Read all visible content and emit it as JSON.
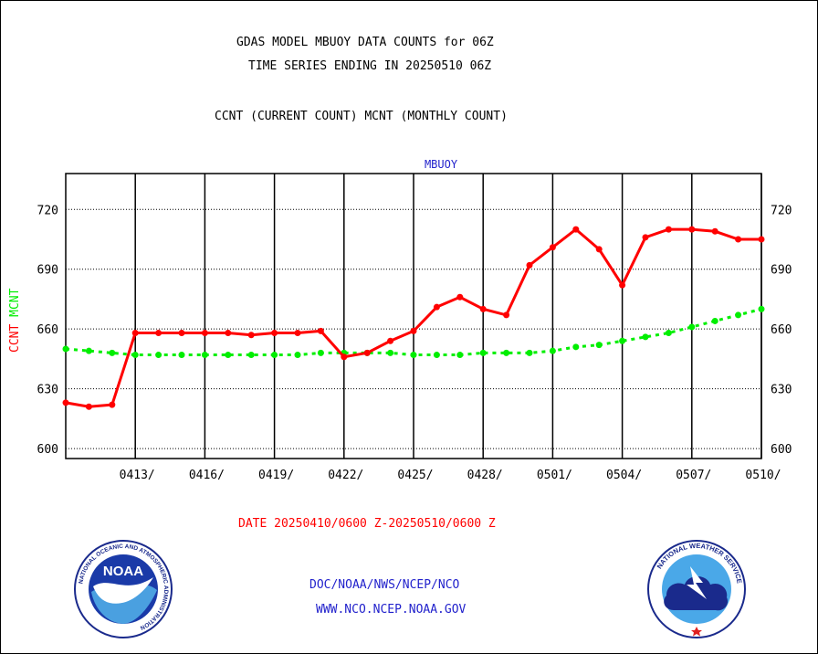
{
  "header": {
    "title_line1": "GDAS MODEL MBUOY DATA COUNTS for 06Z",
    "title_line2": "TIME SERIES ENDING IN 20250510 06Z",
    "subtitle": "CCNT (CURRENT COUNT) MCNT (MONTHLY COUNT)"
  },
  "footer": {
    "date_range": "DATE 20250410/0600 Z-20250510/0600 Z",
    "org_line": "DOC/NOAA/NWS/NCEP/NCO",
    "url_line": "WWW.NCO.NCEP.NOAA.GOV"
  },
  "logos": {
    "noaa": {
      "center_text": "NOAA",
      "ring_text": "NATIONAL OCEANIC AND ATMOSPHERIC ADMINISTRATION",
      "bottom_text": "U.S. DEPARTMENT OF COMMERCE"
    },
    "nws": {
      "ring_text": "NATIONAL WEATHER SERVICE"
    }
  },
  "chart_data": {
    "type": "line",
    "title": "MBUOY",
    "ylabel_series": [
      "CCNT",
      "MCNT"
    ],
    "xlabel": "DATE 20250410/0600 Z-20250510/0600 Z",
    "ylim": [
      595,
      738
    ],
    "yticks": [
      600,
      630,
      660,
      690,
      720
    ],
    "x_ticks": [
      {
        "label": "0413/",
        "day": 3
      },
      {
        "label": "0416/",
        "day": 6
      },
      {
        "label": "0419/",
        "day": 9
      },
      {
        "label": "0422/",
        "day": 12
      },
      {
        "label": "0425/",
        "day": 15
      },
      {
        "label": "0428/",
        "day": 18
      },
      {
        "label": "0501/",
        "day": 21
      },
      {
        "label": "0504/",
        "day": 24
      },
      {
        "label": "0507/",
        "day": 27
      },
      {
        "label": "0510/",
        "day": 30
      }
    ],
    "x_days": [
      0,
      1,
      2,
      3,
      4,
      5,
      6,
      7,
      8,
      9,
      10,
      11,
      12,
      13,
      14,
      15,
      16,
      17,
      18,
      19,
      20,
      21,
      22,
      23,
      24,
      25,
      26,
      27,
      28,
      29,
      30
    ],
    "grid": true,
    "series": [
      {
        "name": "CCNT",
        "color": "#ff0000",
        "style": "solid",
        "values": [
          623,
          621,
          622,
          658,
          658,
          658,
          658,
          658,
          657,
          658,
          658,
          659,
          646,
          648,
          654,
          659,
          671,
          676,
          670,
          667,
          692,
          701,
          710,
          700,
          682,
          706,
          710,
          710,
          709,
          705,
          705
        ]
      },
      {
        "name": "MCNT",
        "color": "#00ee00",
        "style": "dotted",
        "values": [
          650,
          649,
          648,
          647,
          647,
          647,
          647,
          647,
          647,
          647,
          647,
          648,
          648,
          648,
          648,
          647,
          647,
          647,
          648,
          648,
          648,
          649,
          651,
          652,
          654,
          656,
          658,
          661,
          664,
          667,
          670
        ]
      }
    ]
  }
}
